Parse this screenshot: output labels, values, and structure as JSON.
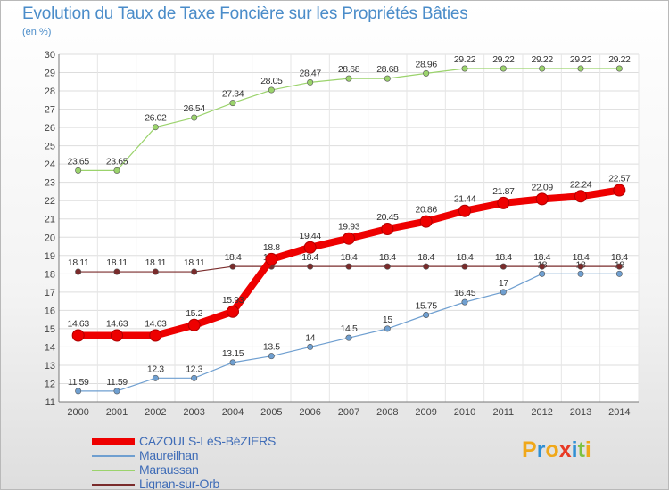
{
  "title": "Evolution du Taux de Taxe Foncière sur les Propriétés Bâties",
  "unit_label": "(en %)",
  "logo": {
    "letters": [
      {
        "ch": "P",
        "color": "#f0a81a"
      },
      {
        "ch": "r",
        "color": "#2f8fd4"
      },
      {
        "ch": "o",
        "color": "#f0a81a"
      },
      {
        "ch": "x",
        "color": "#e83a25"
      },
      {
        "ch": "i",
        "color": "#2f8fd4"
      },
      {
        "ch": "t",
        "color": "#7cc142"
      },
      {
        "ch": "i",
        "color": "#f0a81a"
      }
    ]
  },
  "chart_data": {
    "type": "line",
    "title": "Evolution du Taux de Taxe Foncière sur les Propriétés Bâties",
    "ylabel": "(en %)",
    "x": [
      2000,
      2001,
      2002,
      2003,
      2004,
      2005,
      2006,
      2007,
      2008,
      2009,
      2010,
      2011,
      2012,
      2013,
      2014
    ],
    "ylim": [
      11,
      30
    ],
    "yticks": [
      11,
      12,
      13,
      14,
      15,
      16,
      17,
      18,
      19,
      20,
      21,
      22,
      23,
      24,
      25,
      26,
      27,
      28,
      29,
      30
    ],
    "grid": true,
    "legend_position": "bottom-left",
    "series": [
      {
        "name": "CAZOULS-LèS-BéZIERS",
        "color": "#ee0000",
        "emphasis": true,
        "values": [
          14.63,
          14.63,
          14.63,
          15.2,
          15.93,
          18.8,
          19.44,
          19.93,
          20.45,
          20.86,
          21.44,
          21.87,
          22.09,
          22.24,
          22.57
        ],
        "labels": [
          "14.63",
          "14.63",
          "14.63",
          "15.2",
          "15.93",
          "18.8",
          "19.44",
          "19.93",
          "20.45",
          "20.86",
          "21.44",
          "21.87",
          "22.09",
          "22.24",
          "22.57"
        ]
      },
      {
        "name": "Maureilhan",
        "color": "#6f9fd0",
        "values": [
          11.59,
          11.59,
          12.3,
          12.3,
          13.15,
          13.5,
          14,
          14.5,
          15,
          15.75,
          16.45,
          17,
          18,
          18,
          18
        ],
        "labels": [
          "11.59",
          "11.59",
          "12.3",
          "12.3",
          "13.15",
          "13.5",
          "14",
          "14.5",
          "15",
          "15.75",
          "16.45",
          "17",
          "18",
          "18",
          "18"
        ]
      },
      {
        "name": "Maraussan",
        "color": "#9bd36c",
        "values": [
          23.65,
          23.65,
          26.02,
          26.54,
          27.34,
          28.05,
          28.47,
          28.68,
          28.68,
          28.96,
          29.22,
          29.22,
          29.22,
          29.22,
          29.22
        ],
        "labels": [
          "23.65",
          "23.65",
          "26.02",
          "26.54",
          "27.34",
          "28.05",
          "28.47",
          "28.68",
          "28.68",
          "28.96",
          "29.22",
          "29.22",
          "29.22",
          "29.22",
          "29.22"
        ]
      },
      {
        "name": "Lignan-sur-Orb",
        "color": "#7a2b2b",
        "values": [
          18.11,
          18.11,
          18.11,
          18.11,
          18.4,
          18.4,
          18.4,
          18.4,
          18.4,
          18.4,
          18.4,
          18.4,
          18.4,
          18.4,
          18.4
        ],
        "labels": [
          "18.11",
          "18.11",
          "18.11",
          "18.11",
          "18.4",
          "18.4",
          "18.4",
          "18.4",
          "18.4",
          "18.4",
          "18.4",
          "18.4",
          "18.4",
          "18.4",
          "18.4"
        ]
      }
    ]
  }
}
